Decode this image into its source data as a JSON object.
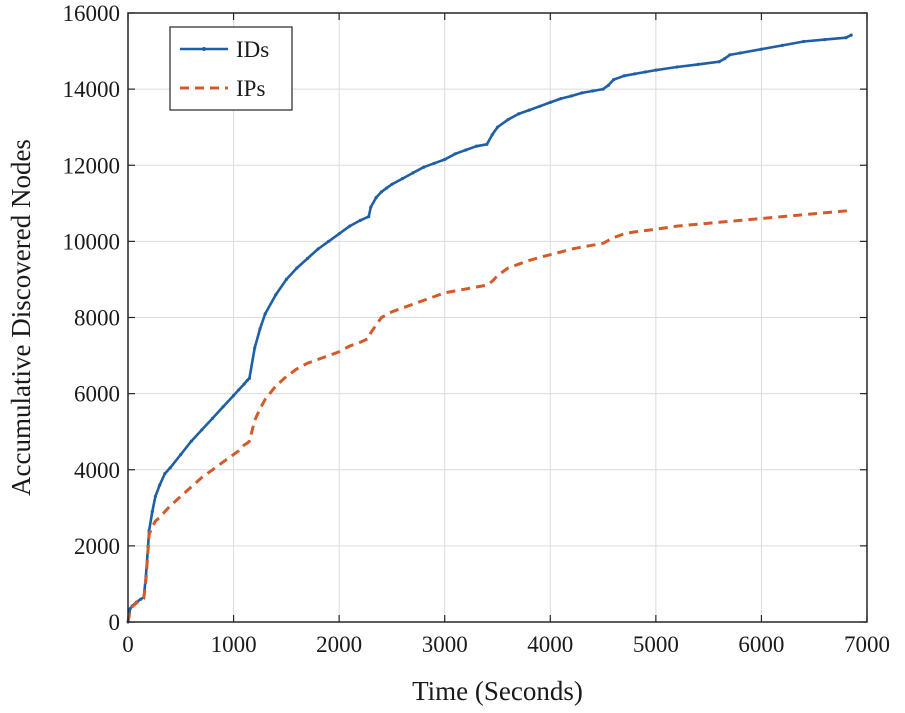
{
  "chart_data": {
    "type": "line",
    "title": "",
    "xlabel": "Time (Seconds)",
    "ylabel": "Accumulative Discovered Nodes",
    "xlim": [
      0,
      7000
    ],
    "ylim": [
      0,
      16000
    ],
    "xticks": [
      0,
      1000,
      2000,
      3000,
      4000,
      5000,
      6000,
      7000
    ],
    "yticks": [
      0,
      2000,
      4000,
      6000,
      8000,
      10000,
      12000,
      14000,
      16000
    ],
    "grid": true,
    "legend_position": "top-left",
    "series": [
      {
        "name": "IDs",
        "color": "#1f5fa6",
        "style": "solid-with-point-markers",
        "x": [
          0,
          20,
          40,
          80,
          120,
          150,
          170,
          190,
          200,
          230,
          260,
          300,
          350,
          400,
          500,
          600,
          700,
          800,
          900,
          1000,
          1050,
          1100,
          1130,
          1150,
          1200,
          1250,
          1300,
          1400,
          1500,
          1600,
          1700,
          1800,
          1900,
          2000,
          2100,
          2200,
          2280,
          2300,
          2350,
          2400,
          2450,
          2500,
          2600,
          2700,
          2800,
          2900,
          3000,
          3100,
          3200,
          3300,
          3400,
          3450,
          3500,
          3600,
          3700,
          3800,
          3900,
          4000,
          4100,
          4200,
          4300,
          4400,
          4500,
          4550,
          4600,
          4700,
          4800,
          4900,
          5000,
          5200,
          5400,
          5600,
          5650,
          5700,
          5800,
          6000,
          6200,
          6400,
          6600,
          6800,
          6850
        ],
        "values": [
          0,
          350,
          420,
          520,
          600,
          650,
          1200,
          2000,
          2400,
          2900,
          3300,
          3600,
          3900,
          4050,
          4400,
          4750,
          5050,
          5350,
          5650,
          5950,
          6100,
          6250,
          6350,
          6400,
          7200,
          7700,
          8100,
          8600,
          9000,
          9300,
          9550,
          9800,
          10000,
          10200,
          10400,
          10550,
          10650,
          10900,
          11150,
          11300,
          11400,
          11500,
          11650,
          11800,
          11950,
          12050,
          12150,
          12300,
          12400,
          12500,
          12550,
          12800,
          13000,
          13200,
          13350,
          13450,
          13550,
          13650,
          13750,
          13820,
          13900,
          13950,
          14000,
          14100,
          14250,
          14350,
          14400,
          14450,
          14500,
          14580,
          14650,
          14720,
          14800,
          14900,
          14950,
          15050,
          15150,
          15250,
          15300,
          15350,
          15420
        ]
      },
      {
        "name": "IPs",
        "color": "#d35b2a",
        "style": "dashed",
        "x": [
          0,
          20,
          40,
          80,
          120,
          150,
          170,
          190,
          200,
          230,
          260,
          300,
          350,
          400,
          500,
          600,
          700,
          800,
          900,
          1000,
          1050,
          1100,
          1130,
          1150,
          1200,
          1250,
          1300,
          1400,
          1500,
          1600,
          1700,
          1800,
          1900,
          2000,
          2100,
          2200,
          2280,
          2300,
          2350,
          2400,
          2500,
          2600,
          2700,
          2800,
          2900,
          3000,
          3100,
          3200,
          3300,
          3400,
          3450,
          3500,
          3600,
          3700,
          3800,
          3900,
          4000,
          4100,
          4200,
          4300,
          4400,
          4500,
          4600,
          4700,
          4800,
          5000,
          5200,
          5400,
          5600,
          5800,
          6000,
          6200,
          6400,
          6600,
          6800,
          6850
        ],
        "values": [
          0,
          300,
          400,
          500,
          580,
          620,
          1100,
          1900,
          2300,
          2500,
          2650,
          2750,
          2900,
          3050,
          3300,
          3550,
          3800,
          4000,
          4200,
          4400,
          4500,
          4650,
          4700,
          4750,
          5300,
          5600,
          5850,
          6200,
          6450,
          6650,
          6800,
          6900,
          7000,
          7100,
          7250,
          7350,
          7450,
          7600,
          7800,
          8000,
          8150,
          8250,
          8350,
          8450,
          8550,
          8650,
          8700,
          8750,
          8800,
          8850,
          8950,
          9100,
          9300,
          9400,
          9500,
          9580,
          9650,
          9720,
          9800,
          9850,
          9900,
          9950,
          10100,
          10200,
          10250,
          10320,
          10400,
          10450,
          10500,
          10550,
          10600,
          10650,
          10700,
          10750,
          10800,
          10850
        ]
      }
    ]
  }
}
